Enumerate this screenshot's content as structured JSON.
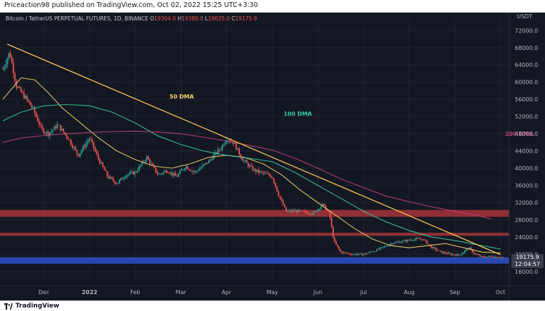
{
  "header": {
    "text": "Priceaction98 published on TradingView.com, Oct 02, 2022 15:25 UTC+3:30"
  },
  "symbol": {
    "name": "Bitcoin / TetherUS PERPETUAL FUTURES, 1D, BINANCE",
    "o_label": "O",
    "o": "19304.0",
    "h_label": "H",
    "h": "19389.0",
    "l_label": "L",
    "l": "19025.0",
    "c_label": "C",
    "c": "19175.9"
  },
  "footer": {
    "brand": "TradingView"
  },
  "price_tag": {
    "price": "19175.9",
    "countdown": "12:04:57"
  },
  "colors": {
    "background": "#131722",
    "ma50": "#f0d46a",
    "ma100": "#3bc9a0",
    "ma200": "#c2407a",
    "trendline": "#f5c452",
    "resistance_zone": "#c63b3e",
    "support_zone": "#2b50c8",
    "candle_up": "#26a69a",
    "candle_down": "#ef5350"
  },
  "chart_data": {
    "type": "candlestick",
    "currency_label": "USDT",
    "y_ticks": [
      72000,
      68000,
      64000,
      60000,
      56000,
      52000,
      48000,
      44000,
      40000,
      36000,
      32000,
      28000,
      24000,
      20000,
      16000
    ],
    "y_tick_labels": [
      "72000.0",
      "68000.0",
      "64000.0",
      "60000.0",
      "56000.0",
      "52000.0",
      "48000.0",
      "44000.0",
      "40000.0",
      "36000.0",
      "32000.0",
      "28000.0",
      "24000.0",
      "20000.0",
      "16000.0"
    ],
    "ylim": [
      14500,
      74500
    ],
    "x_ticks": [
      {
        "label": "Dec",
        "month_index": 1
      },
      {
        "label": "2022",
        "month_index": 2
      },
      {
        "label": "Feb",
        "month_index": 3
      },
      {
        "label": "Mar",
        "month_index": 4
      },
      {
        "label": "Apr",
        "month_index": 5
      },
      {
        "label": "May",
        "month_index": 6
      },
      {
        "label": "Jun",
        "month_index": 7
      },
      {
        "label": "Jul",
        "month_index": 8
      },
      {
        "label": "Aug",
        "month_index": 9
      },
      {
        "label": "Sep",
        "month_index": 10
      },
      {
        "label": "Oct",
        "month_index": 11
      }
    ],
    "x_range_months": [
      0.1,
      11.05
    ],
    "close_path": [
      [
        0.1,
        63000
      ],
      [
        0.25,
        67000
      ],
      [
        0.4,
        59000
      ],
      [
        0.55,
        57000
      ],
      [
        0.75,
        54000
      ],
      [
        0.95,
        49000
      ],
      [
        1.1,
        48000
      ],
      [
        1.3,
        50000
      ],
      [
        1.5,
        47500
      ],
      [
        1.75,
        43000
      ],
      [
        2.0,
        47000
      ],
      [
        2.2,
        42000
      ],
      [
        2.4,
        38000
      ],
      [
        2.6,
        36500
      ],
      [
        2.8,
        38500
      ],
      [
        3.0,
        39000
      ],
      [
        3.25,
        42500
      ],
      [
        3.5,
        38500
      ],
      [
        3.7,
        39500
      ],
      [
        3.9,
        38000
      ],
      [
        4.1,
        40500
      ],
      [
        4.3,
        39000
      ],
      [
        4.6,
        41500
      ],
      [
        4.9,
        45000
      ],
      [
        5.0,
        47000
      ],
      [
        5.15,
        46000
      ],
      [
        5.35,
        42000
      ],
      [
        5.6,
        39500
      ],
      [
        5.9,
        38500
      ],
      [
        6.0,
        38000
      ],
      [
        6.15,
        33500
      ],
      [
        6.3,
        30000
      ],
      [
        6.6,
        30000
      ],
      [
        6.9,
        29500
      ],
      [
        7.1,
        31500
      ],
      [
        7.25,
        29500
      ],
      [
        7.35,
        23000
      ],
      [
        7.5,
        20500
      ],
      [
        7.75,
        20000
      ],
      [
        8.0,
        20000
      ],
      [
        8.3,
        21000
      ],
      [
        8.6,
        22500
      ],
      [
        8.85,
        23000
      ],
      [
        9.1,
        23500
      ],
      [
        9.3,
        23500
      ],
      [
        9.5,
        21500
      ],
      [
        9.7,
        20500
      ],
      [
        9.9,
        20000
      ],
      [
        10.1,
        19800
      ],
      [
        10.3,
        21500
      ],
      [
        10.45,
        20000
      ],
      [
        10.6,
        19300
      ],
      [
        10.8,
        19500
      ],
      [
        11.0,
        19300
      ],
      [
        11.05,
        19175.9
      ]
    ],
    "indicators": [
      {
        "name": "50 DMA",
        "color_key": "ma50",
        "label_at": [
          3.75,
          56200
        ],
        "points": [
          [
            0.1,
            56000
          ],
          [
            0.5,
            61000
          ],
          [
            0.8,
            60500
          ],
          [
            1.1,
            57500
          ],
          [
            1.4,
            54000
          ],
          [
            1.8,
            50500
          ],
          [
            2.2,
            47000
          ],
          [
            2.6,
            44000
          ],
          [
            3.0,
            42000
          ],
          [
            3.4,
            40500
          ],
          [
            3.8,
            40000
          ],
          [
            4.2,
            41000
          ],
          [
            4.6,
            42500
          ],
          [
            5.0,
            43000
          ],
          [
            5.4,
            42500
          ],
          [
            5.8,
            41000
          ],
          [
            6.2,
            38500
          ],
          [
            6.6,
            35000
          ],
          [
            7.0,
            32000
          ],
          [
            7.4,
            29000
          ],
          [
            7.8,
            26000
          ],
          [
            8.2,
            23500
          ],
          [
            8.6,
            22000
          ],
          [
            9.0,
            21500
          ],
          [
            9.4,
            22000
          ],
          [
            9.8,
            22500
          ],
          [
            10.2,
            21500
          ],
          [
            10.6,
            20500
          ],
          [
            11.0,
            20300
          ]
        ]
      },
      {
        "name": "100 DMA",
        "color_key": "ma100",
        "label_at": [
          6.25,
          52200
        ],
        "points": [
          [
            0.1,
            51000
          ],
          [
            0.5,
            53000
          ],
          [
            1.0,
            54500
          ],
          [
            1.5,
            54800
          ],
          [
            2.0,
            54500
          ],
          [
            2.5,
            53000
          ],
          [
            3.0,
            50500
          ],
          [
            3.5,
            47500
          ],
          [
            4.0,
            45500
          ],
          [
            4.5,
            44000
          ],
          [
            5.0,
            43000
          ],
          [
            5.5,
            42300
          ],
          [
            6.0,
            41500
          ],
          [
            6.5,
            39000
          ],
          [
            7.0,
            36000
          ],
          [
            7.5,
            33000
          ],
          [
            8.0,
            30000
          ],
          [
            8.5,
            27500
          ],
          [
            9.0,
            25500
          ],
          [
            9.5,
            24000
          ],
          [
            10.0,
            23200
          ],
          [
            10.5,
            22200
          ],
          [
            11.0,
            21200
          ]
        ]
      },
      {
        "name": "200 DMA",
        "color_key": "ma200",
        "label_at": [
          11.1,
          47500
        ],
        "points": [
          [
            0.1,
            46000
          ],
          [
            0.5,
            47000
          ],
          [
            1.0,
            47600
          ],
          [
            1.5,
            48000
          ],
          [
            2.0,
            48300
          ],
          [
            2.5,
            48500
          ],
          [
            3.0,
            48600
          ],
          [
            3.5,
            48400
          ],
          [
            4.0,
            48000
          ],
          [
            4.5,
            47200
          ],
          [
            5.0,
            46300
          ],
          [
            5.5,
            45300
          ],
          [
            6.0,
            44200
          ],
          [
            6.5,
            42300
          ],
          [
            7.0,
            40000
          ],
          [
            7.5,
            37500
          ],
          [
            8.0,
            35500
          ],
          [
            8.5,
            33500
          ],
          [
            9.0,
            32200
          ],
          [
            9.5,
            31000
          ],
          [
            10.0,
            30000
          ],
          [
            10.5,
            29000
          ],
          [
            10.8,
            28200
          ]
        ]
      }
    ],
    "trendline": {
      "color_key": "trendline",
      "from": [
        0.2,
        68800
      ],
      "to": [
        11.0,
        19900
      ]
    },
    "zones": [
      {
        "color_key": "resistance_zone",
        "from": 28700,
        "to": 30300,
        "opacity": 0.7
      },
      {
        "color_key": "resistance_zone",
        "from": 24300,
        "to": 25000,
        "opacity": 0.7
      },
      {
        "color_key": "support_zone",
        "from": 17800,
        "to": 19300,
        "opacity": 0.85
      }
    ],
    "grid": true
  }
}
